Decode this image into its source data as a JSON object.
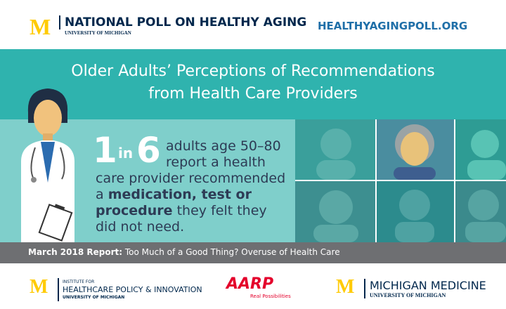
{
  "header": {
    "logo": "M",
    "poll_name": "NATIONAL POLL ON HEALTHY AGING",
    "university": "UNIVERSITY OF MICHIGAN",
    "website": "HEALTHYAGINGPOLL.ORG"
  },
  "title": [
    "Older Adults’ Perceptions of Recommendations",
    "from Health Care Providers"
  ],
  "stat": {
    "numerator": "1",
    "connector": "in",
    "denominator": "6",
    "lines": [
      [
        "adults age 50–80"
      ],
      [
        "report a health"
      ],
      [
        "care provider recommended"
      ],
      [
        "a ",
        "medication, test or"
      ],
      [
        "procedure",
        " they felt they"
      ],
      [
        "did not need."
      ]
    ]
  },
  "report": {
    "label": "March 2018 Report:",
    "name": "Too Much of a Good Thing? Overuse of Health Care"
  },
  "partners": [
    {
      "logo": "M",
      "line1": "INSTITUTE FOR",
      "line2": "HEALTHCARE POLICY & INNOVATION",
      "line3": "UNIVERSITY OF MICHIGAN"
    },
    {
      "logo": "AARP",
      "tagline": "Real Possibilities"
    },
    {
      "logo": "M",
      "line1": "MICHIGAN MEDICINE",
      "line2": "UNIVERSITY OF MICHIGAN"
    }
  ]
}
